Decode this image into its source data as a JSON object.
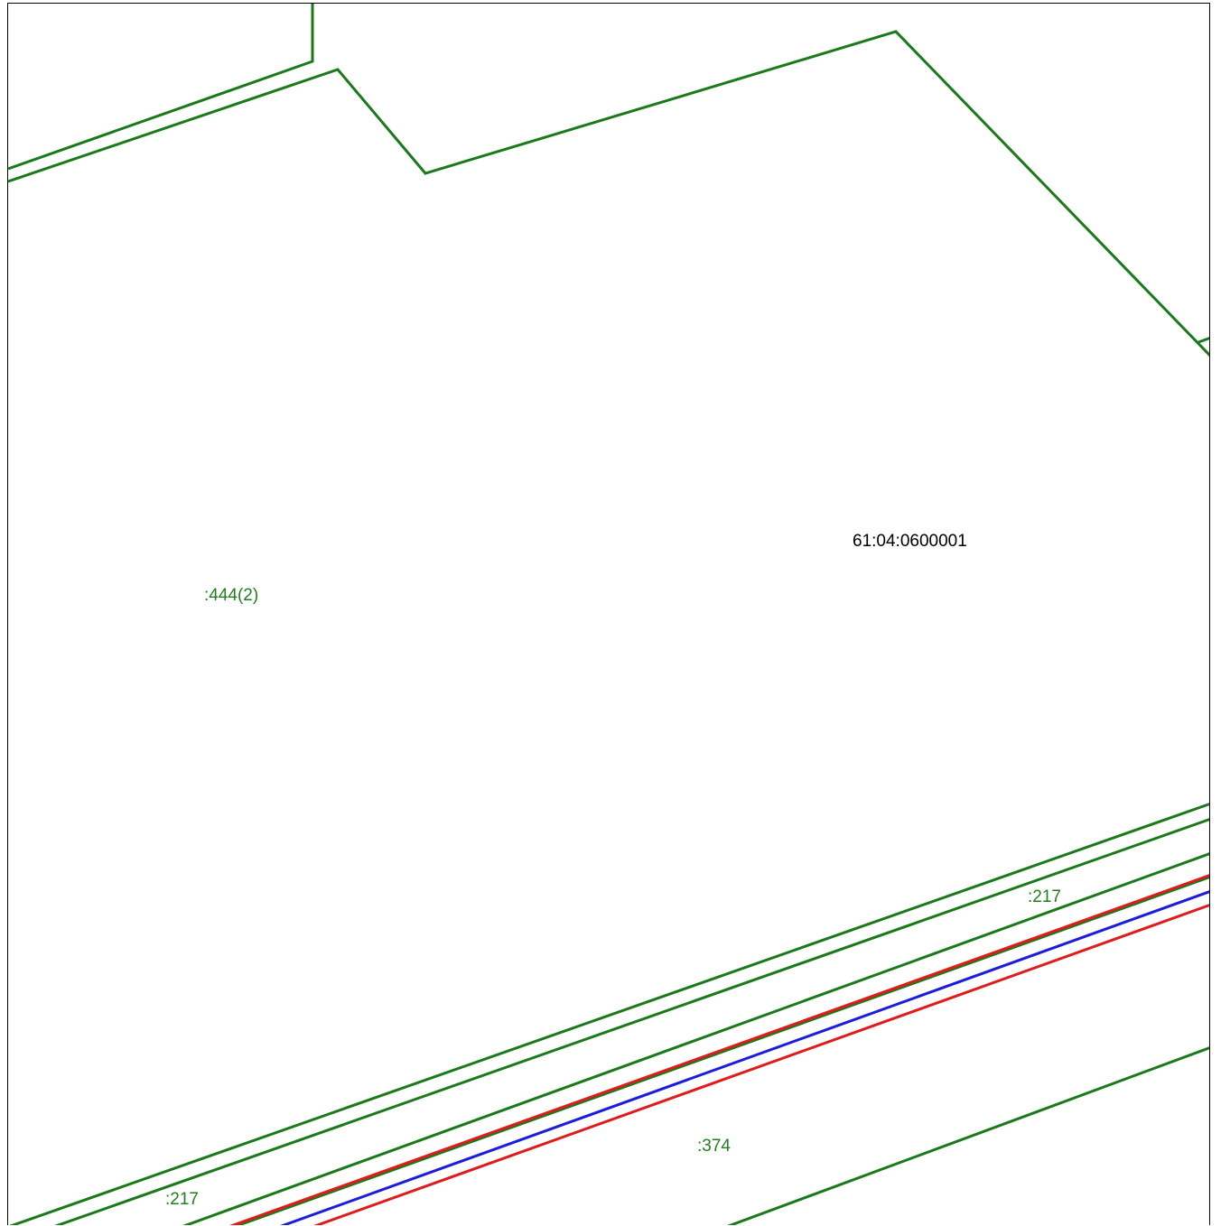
{
  "map": {
    "colors": {
      "parcel_boundary": "#1a7a1a",
      "parcel_label": "#1f7f1f",
      "quarter_label": "#000000",
      "red_line": "#e01b1b",
      "blue_line": "#1c1cdc"
    },
    "quarter_label": "61:04:0600001",
    "parcel_labels": {
      "p444": ":444(2)",
      "p217_right": ":217",
      "p217_left": ":217",
      "p374": ":374"
    }
  }
}
